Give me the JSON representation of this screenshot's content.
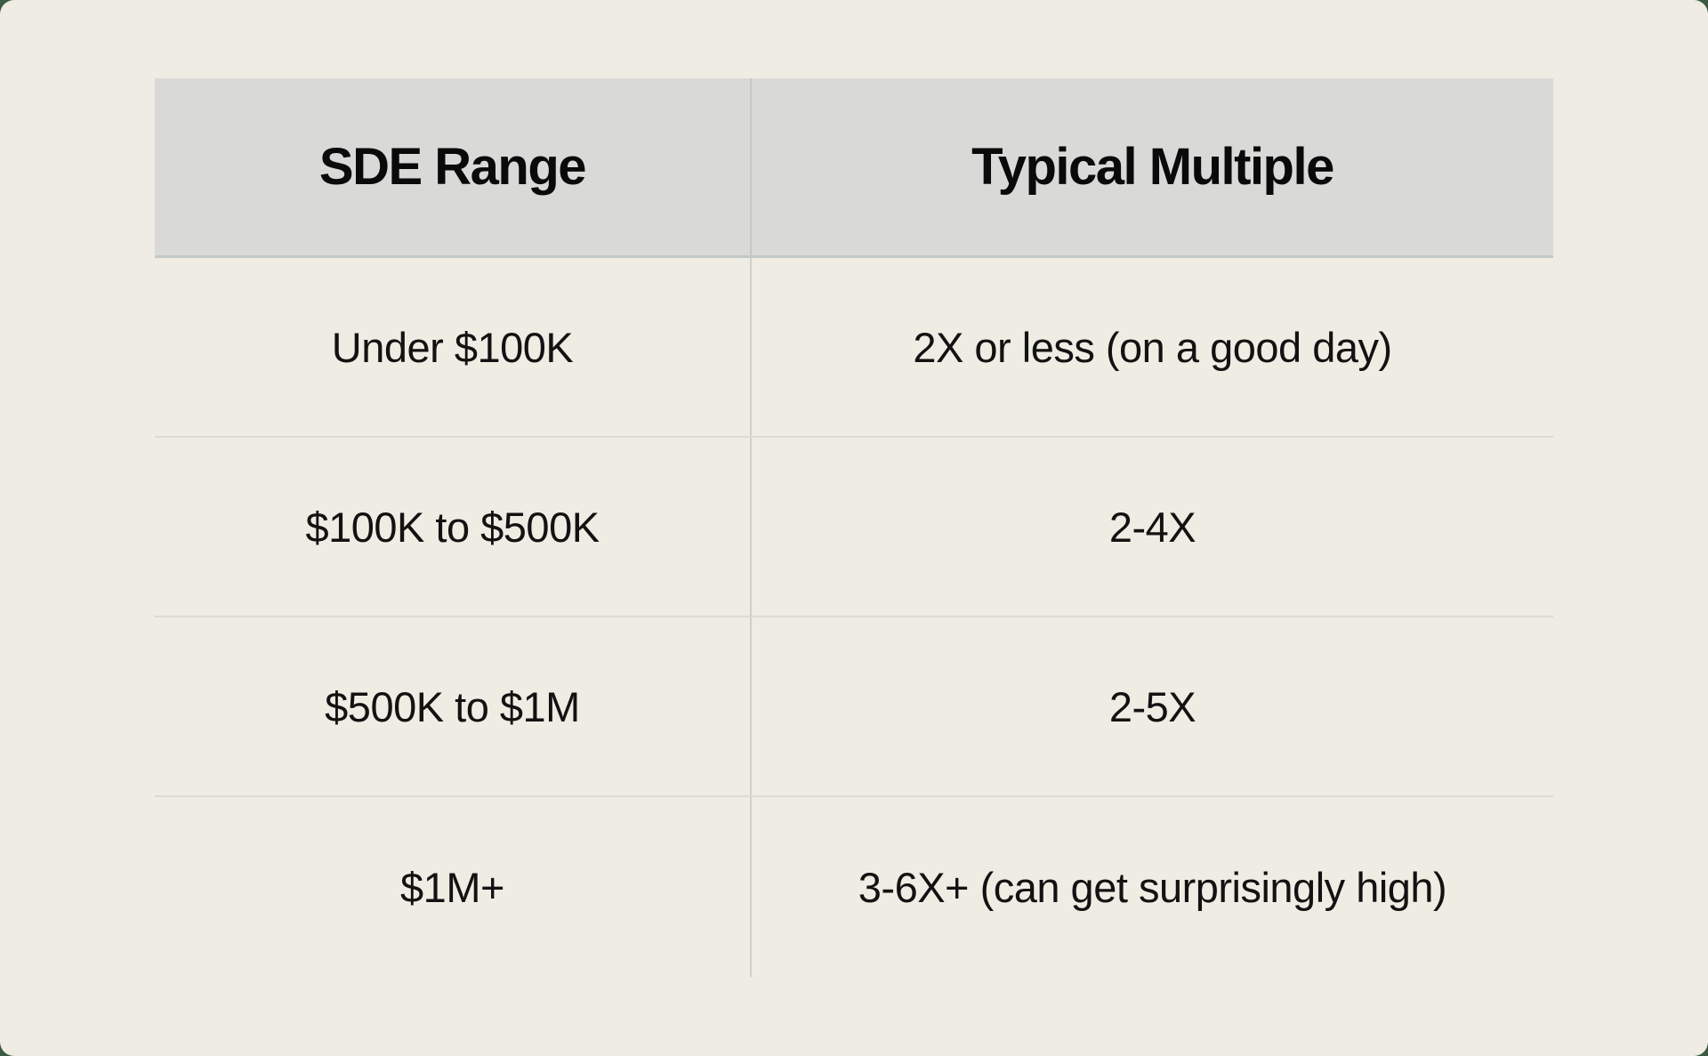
{
  "colors": {
    "page_background": "#3c5a44",
    "card_background": "#efece3",
    "header_background": "#d9d9d7",
    "divider": "#d9dcd4",
    "text": "#0e0e0e"
  },
  "chart_data": {
    "type": "table",
    "title": "",
    "columns": [
      "SDE Range",
      "Typical Multiple"
    ],
    "rows": [
      [
        "Under $100K",
        "2X or less (on a good day)"
      ],
      [
        "$100K to $500K",
        "2-4X"
      ],
      [
        "$500K to $1M",
        "2-5X"
      ],
      [
        "$1M+",
        "3-6X+ (can get surprisingly high)"
      ]
    ]
  }
}
